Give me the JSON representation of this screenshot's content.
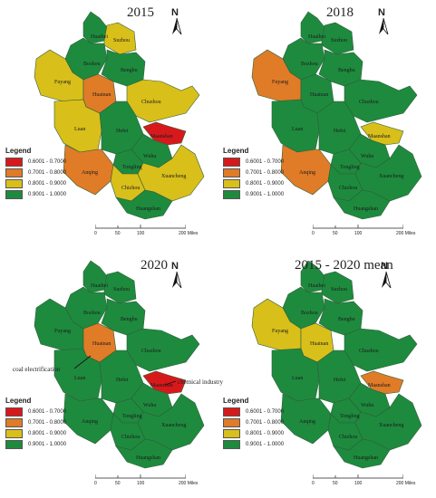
{
  "legend": {
    "title": "Legend",
    "classes": [
      {
        "label": "0.6001 - 0.7000",
        "color": "#d7191c"
      },
      {
        "label": "0.7001 - 0.8000",
        "color": "#e07b27"
      },
      {
        "label": "0.8001 - 0.9000",
        "color": "#d9bf1a"
      },
      {
        "label": "0.9001 - 1.0000",
        "color": "#1e8a3e"
      }
    ]
  },
  "scale_bar": {
    "ticks": [
      "0",
      "50",
      "100",
      "200 Miles"
    ]
  },
  "north_label": "N",
  "cities": [
    "Huaibei",
    "Suzhou",
    "Bozhou",
    "Bengbu",
    "Fuyang",
    "Huainan",
    "Chuzhou",
    "Luan",
    "Hefei",
    "Maanshan",
    "Wuhu",
    "Tongling",
    "Anqing",
    "Chizhou",
    "Xuancheng",
    "Huangshan"
  ],
  "panels": [
    {
      "title": "2015",
      "classes": {
        "Huaibei": 3,
        "Suzhou": 2,
        "Bozhou": 3,
        "Bengbu": 3,
        "Fuyang": 2,
        "Huainan": 1,
        "Chuzhou": 2,
        "Luan": 2,
        "Hefei": 3,
        "Maanshan": 0,
        "Wuhu": 3,
        "Tongling": 3,
        "Anqing": 1,
        "Chizhou": 2,
        "Xuancheng": 2,
        "Huangshan": 3
      }
    },
    {
      "title": "2018",
      "classes": {
        "Huaibei": 3,
        "Suzhou": 3,
        "Bozhou": 3,
        "Bengbu": 3,
        "Fuyang": 1,
        "Huainan": 3,
        "Chuzhou": 3,
        "Luan": 3,
        "Hefei": 3,
        "Maanshan": 2,
        "Wuhu": 3,
        "Tongling": 3,
        "Anqing": 1,
        "Chizhou": 3,
        "Xuancheng": 3,
        "Huangshan": 3
      }
    },
    {
      "title": "2020",
      "classes": {
        "Huaibei": 3,
        "Suzhou": 3,
        "Bozhou": 3,
        "Bengbu": 3,
        "Fuyang": 3,
        "Huainan": 1,
        "Chuzhou": 3,
        "Luan": 3,
        "Hefei": 3,
        "Maanshan": 0,
        "Wuhu": 3,
        "Tongling": 3,
        "Anqing": 3,
        "Chizhou": 3,
        "Xuancheng": 3,
        "Huangshan": 3
      },
      "annotations": [
        "coal electrification",
        "chemical industry"
      ]
    },
    {
      "title": "2015 - 2020 mean",
      "classes": {
        "Huaibei": 3,
        "Suzhou": 3,
        "Bozhou": 3,
        "Bengbu": 3,
        "Fuyang": 2,
        "Huainan": 2,
        "Chuzhou": 3,
        "Luan": 3,
        "Hefei": 3,
        "Maanshan": 1,
        "Wuhu": 3,
        "Tongling": 3,
        "Anqing": 3,
        "Chizhou": 3,
        "Xuancheng": 3,
        "Huangshan": 3
      }
    }
  ]
}
